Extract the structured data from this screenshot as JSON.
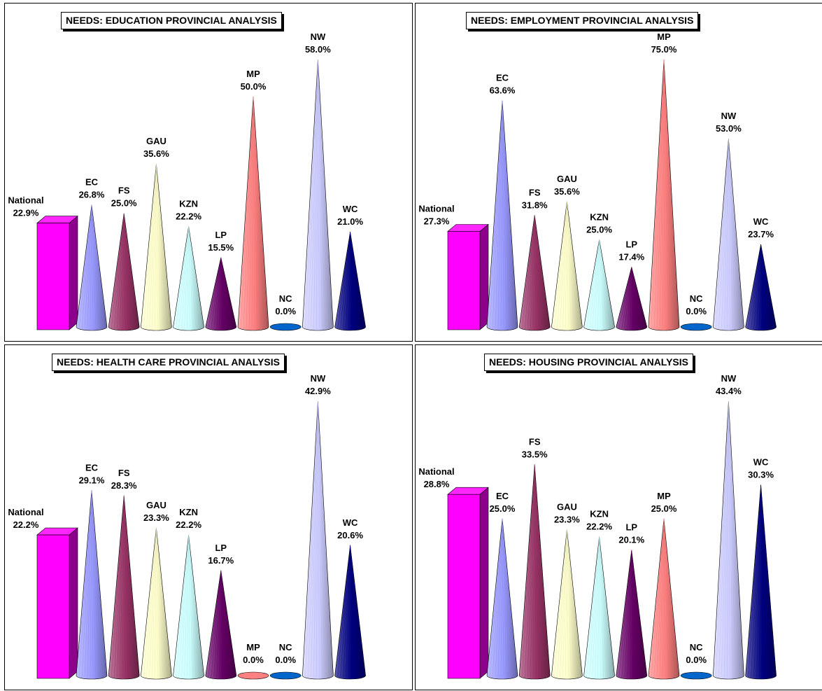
{
  "chart_data": [
    {
      "type": "bar",
      "title": "NEEDS: EDUCATION PROVINCIAL ANALYSIS",
      "categories": [
        "National",
        "EC",
        "FS",
        "GAU",
        "KZN",
        "LP",
        "MP",
        "NC",
        "NW",
        "WC"
      ],
      "values": [
        22.9,
        26.8,
        25.0,
        35.6,
        22.2,
        15.5,
        50.0,
        0.0,
        58.0,
        21.0
      ],
      "value_labels": [
        "22.9%",
        "26.8%",
        "25.0%",
        "35.6%",
        "22.2%",
        "15.5%",
        "50.0%",
        "0.0%",
        "58.0%",
        "21.0%"
      ]
    },
    {
      "type": "bar",
      "title": "NEEDS: EMPLOYMENT PROVINCIAL ANALYSIS",
      "categories": [
        "National",
        "EC",
        "FS",
        "GAU",
        "KZN",
        "LP",
        "MP",
        "NC",
        "NW",
        "WC"
      ],
      "values": [
        27.3,
        63.6,
        31.8,
        35.6,
        25.0,
        17.4,
        75.0,
        0.0,
        53.0,
        23.7
      ],
      "value_labels": [
        "27.3%",
        "63.6%",
        "31.8%",
        "35.6%",
        "25.0%",
        "17.4%",
        "75.0%",
        "0.0%",
        "53.0%",
        "23.7%"
      ]
    },
    {
      "type": "bar",
      "title": "NEEDS: HEALTH CARE PROVINCIAL ANALYSIS",
      "categories": [
        "National",
        "EC",
        "FS",
        "GAU",
        "KZN",
        "LP",
        "MP",
        "NC",
        "NW",
        "WC"
      ],
      "values": [
        22.2,
        29.1,
        28.3,
        23.3,
        22.2,
        16.7,
        0.0,
        0.0,
        42.9,
        20.6
      ],
      "value_labels": [
        "22.2%",
        "29.1%",
        "28.3%",
        "23.3%",
        "22.2%",
        "16.7%",
        "0.0%",
        "0.0%",
        "42.9%",
        "20.6%"
      ]
    },
    {
      "type": "bar",
      "title": "NEEDS: HOUSING PROVINCIAL ANALYSIS",
      "categories": [
        "National",
        "EC",
        "FS",
        "GAU",
        "KZN",
        "LP",
        "MP",
        "NC",
        "NW",
        "WC"
      ],
      "values": [
        28.8,
        25.0,
        33.5,
        23.3,
        22.2,
        20.1,
        25.0,
        0.0,
        43.4,
        30.3
      ],
      "value_labels": [
        "28.8%",
        "25.0%",
        "33.5%",
        "23.3%",
        "22.2%",
        "20.1%",
        "25.0%",
        "0.0%",
        "43.4%",
        "30.3%"
      ]
    }
  ],
  "colors": {
    "National": "#ff00ff",
    "EC": "#9999ff",
    "FS": "#993366",
    "GAU": "#ffffcc",
    "KZN": "#ccffff",
    "LP": "#660066",
    "MP": "#ff8080",
    "NC": "#0066cc",
    "NW": "#ccccff",
    "WC": "#000080"
  }
}
